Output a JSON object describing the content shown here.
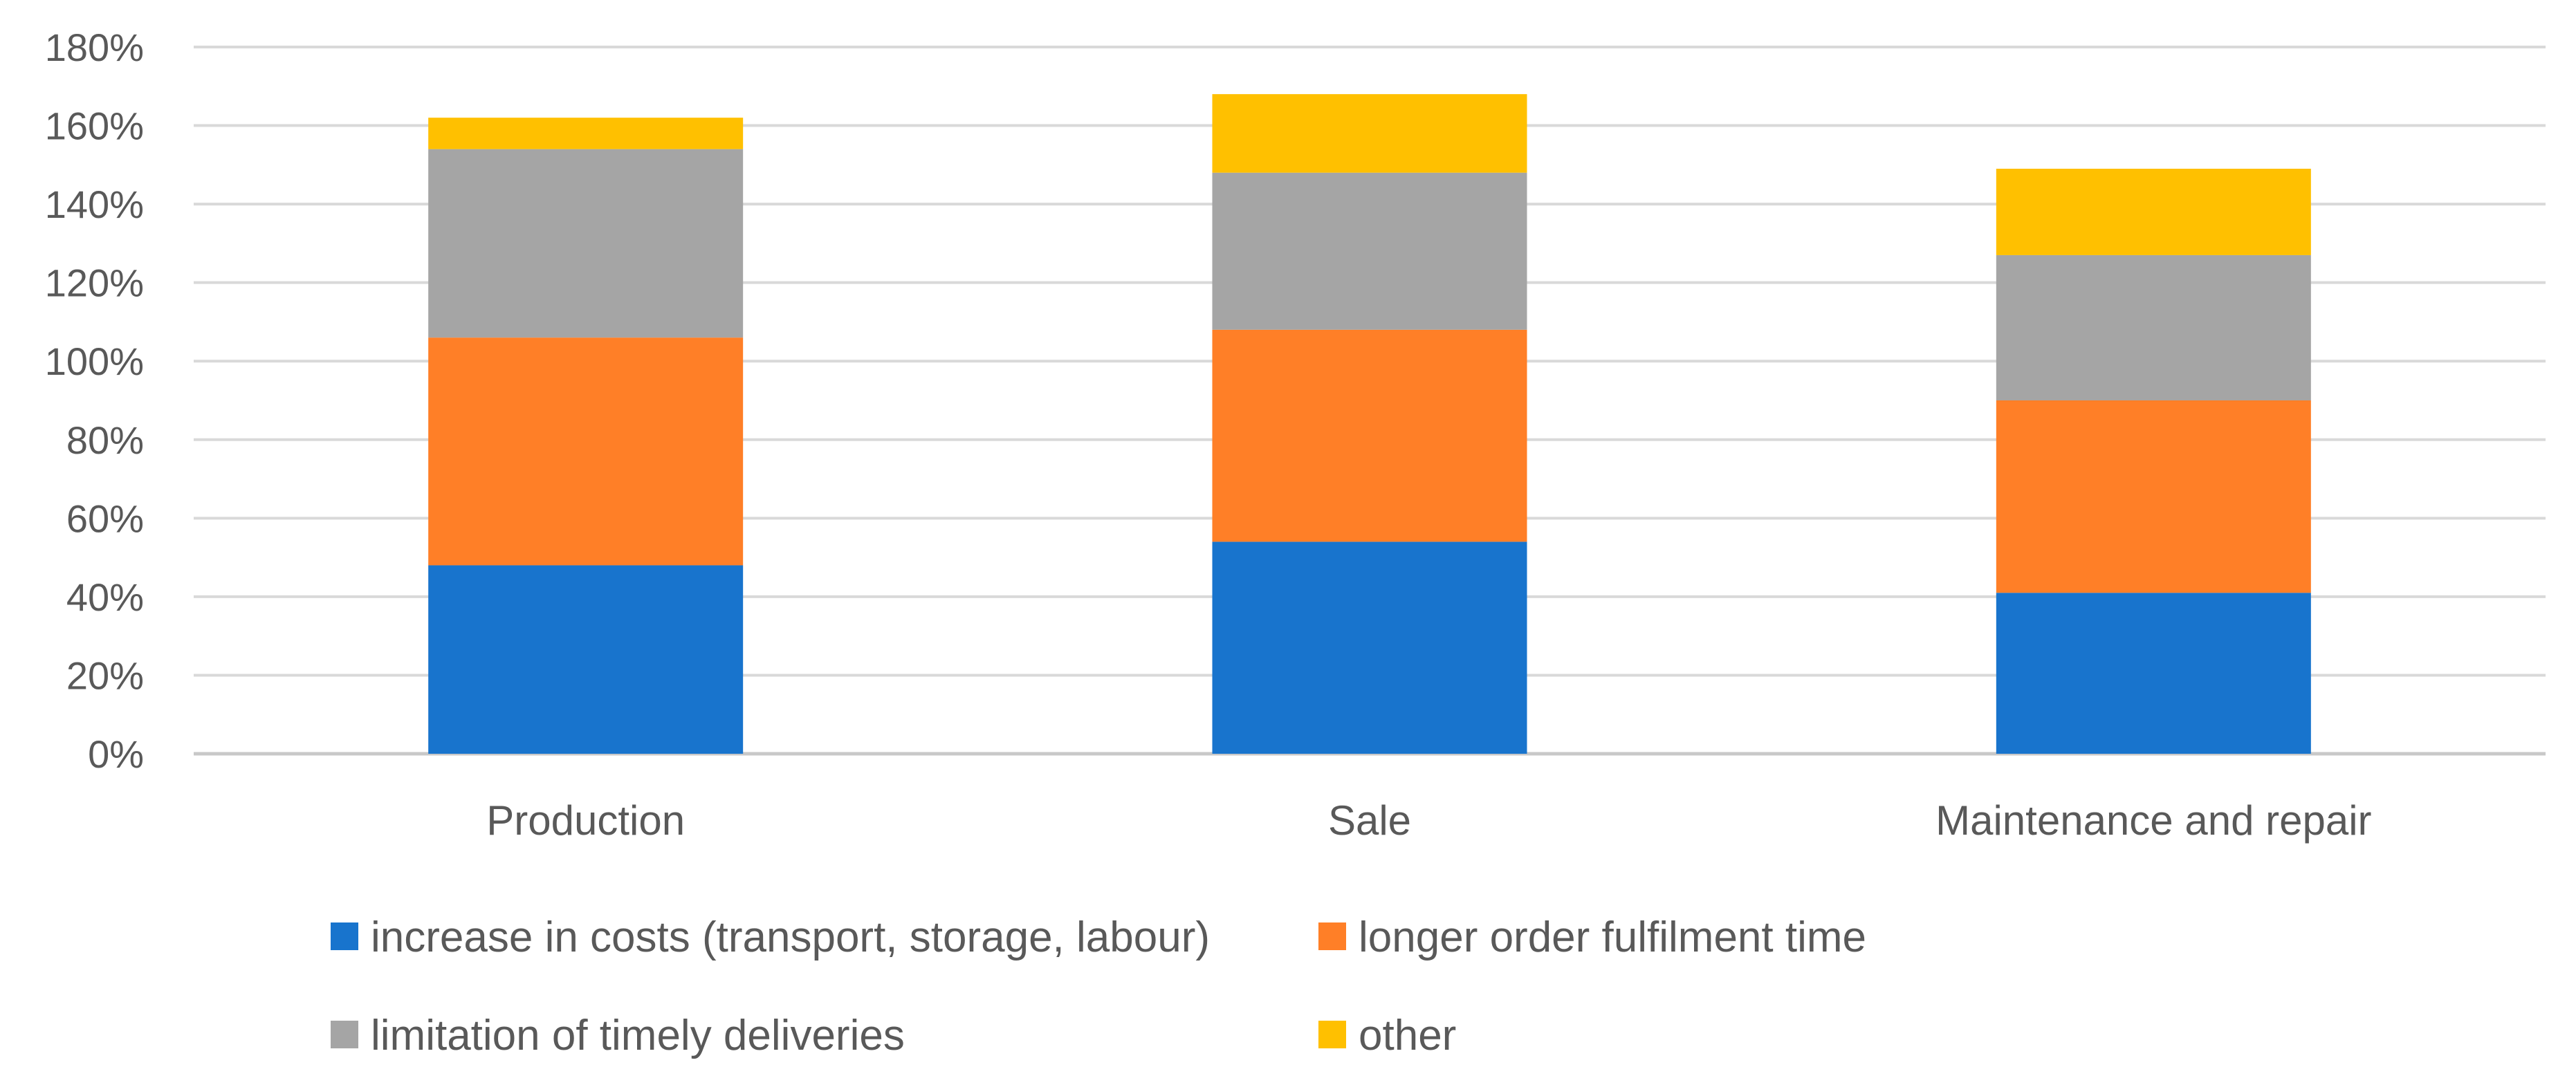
{
  "chart_data": {
    "type": "bar",
    "stacked": true,
    "categories": [
      "Production",
      "Sale",
      "Maintenance and repair"
    ],
    "series": [
      {
        "name": "increase in costs (transport, storage, labour)",
        "color": "#1874CD",
        "values": [
          48,
          54,
          41
        ]
      },
      {
        "name": "longer order fulfilment time",
        "color": "#FF7F27",
        "values": [
          58,
          54,
          49
        ]
      },
      {
        "name": "limitation of timely deliveries",
        "color": "#A5A5A5",
        "values": [
          48,
          40,
          37
        ]
      },
      {
        "name": "other",
        "color": "#FFC000",
        "values": [
          8,
          20,
          22
        ]
      }
    ],
    "yticks": [
      "0%",
      "20%",
      "40%",
      "60%",
      "80%",
      "100%",
      "120%",
      "140%",
      "160%",
      "180%"
    ],
    "ylim": [
      0,
      180
    ],
    "grid": true,
    "legend_position": "bottom"
  }
}
